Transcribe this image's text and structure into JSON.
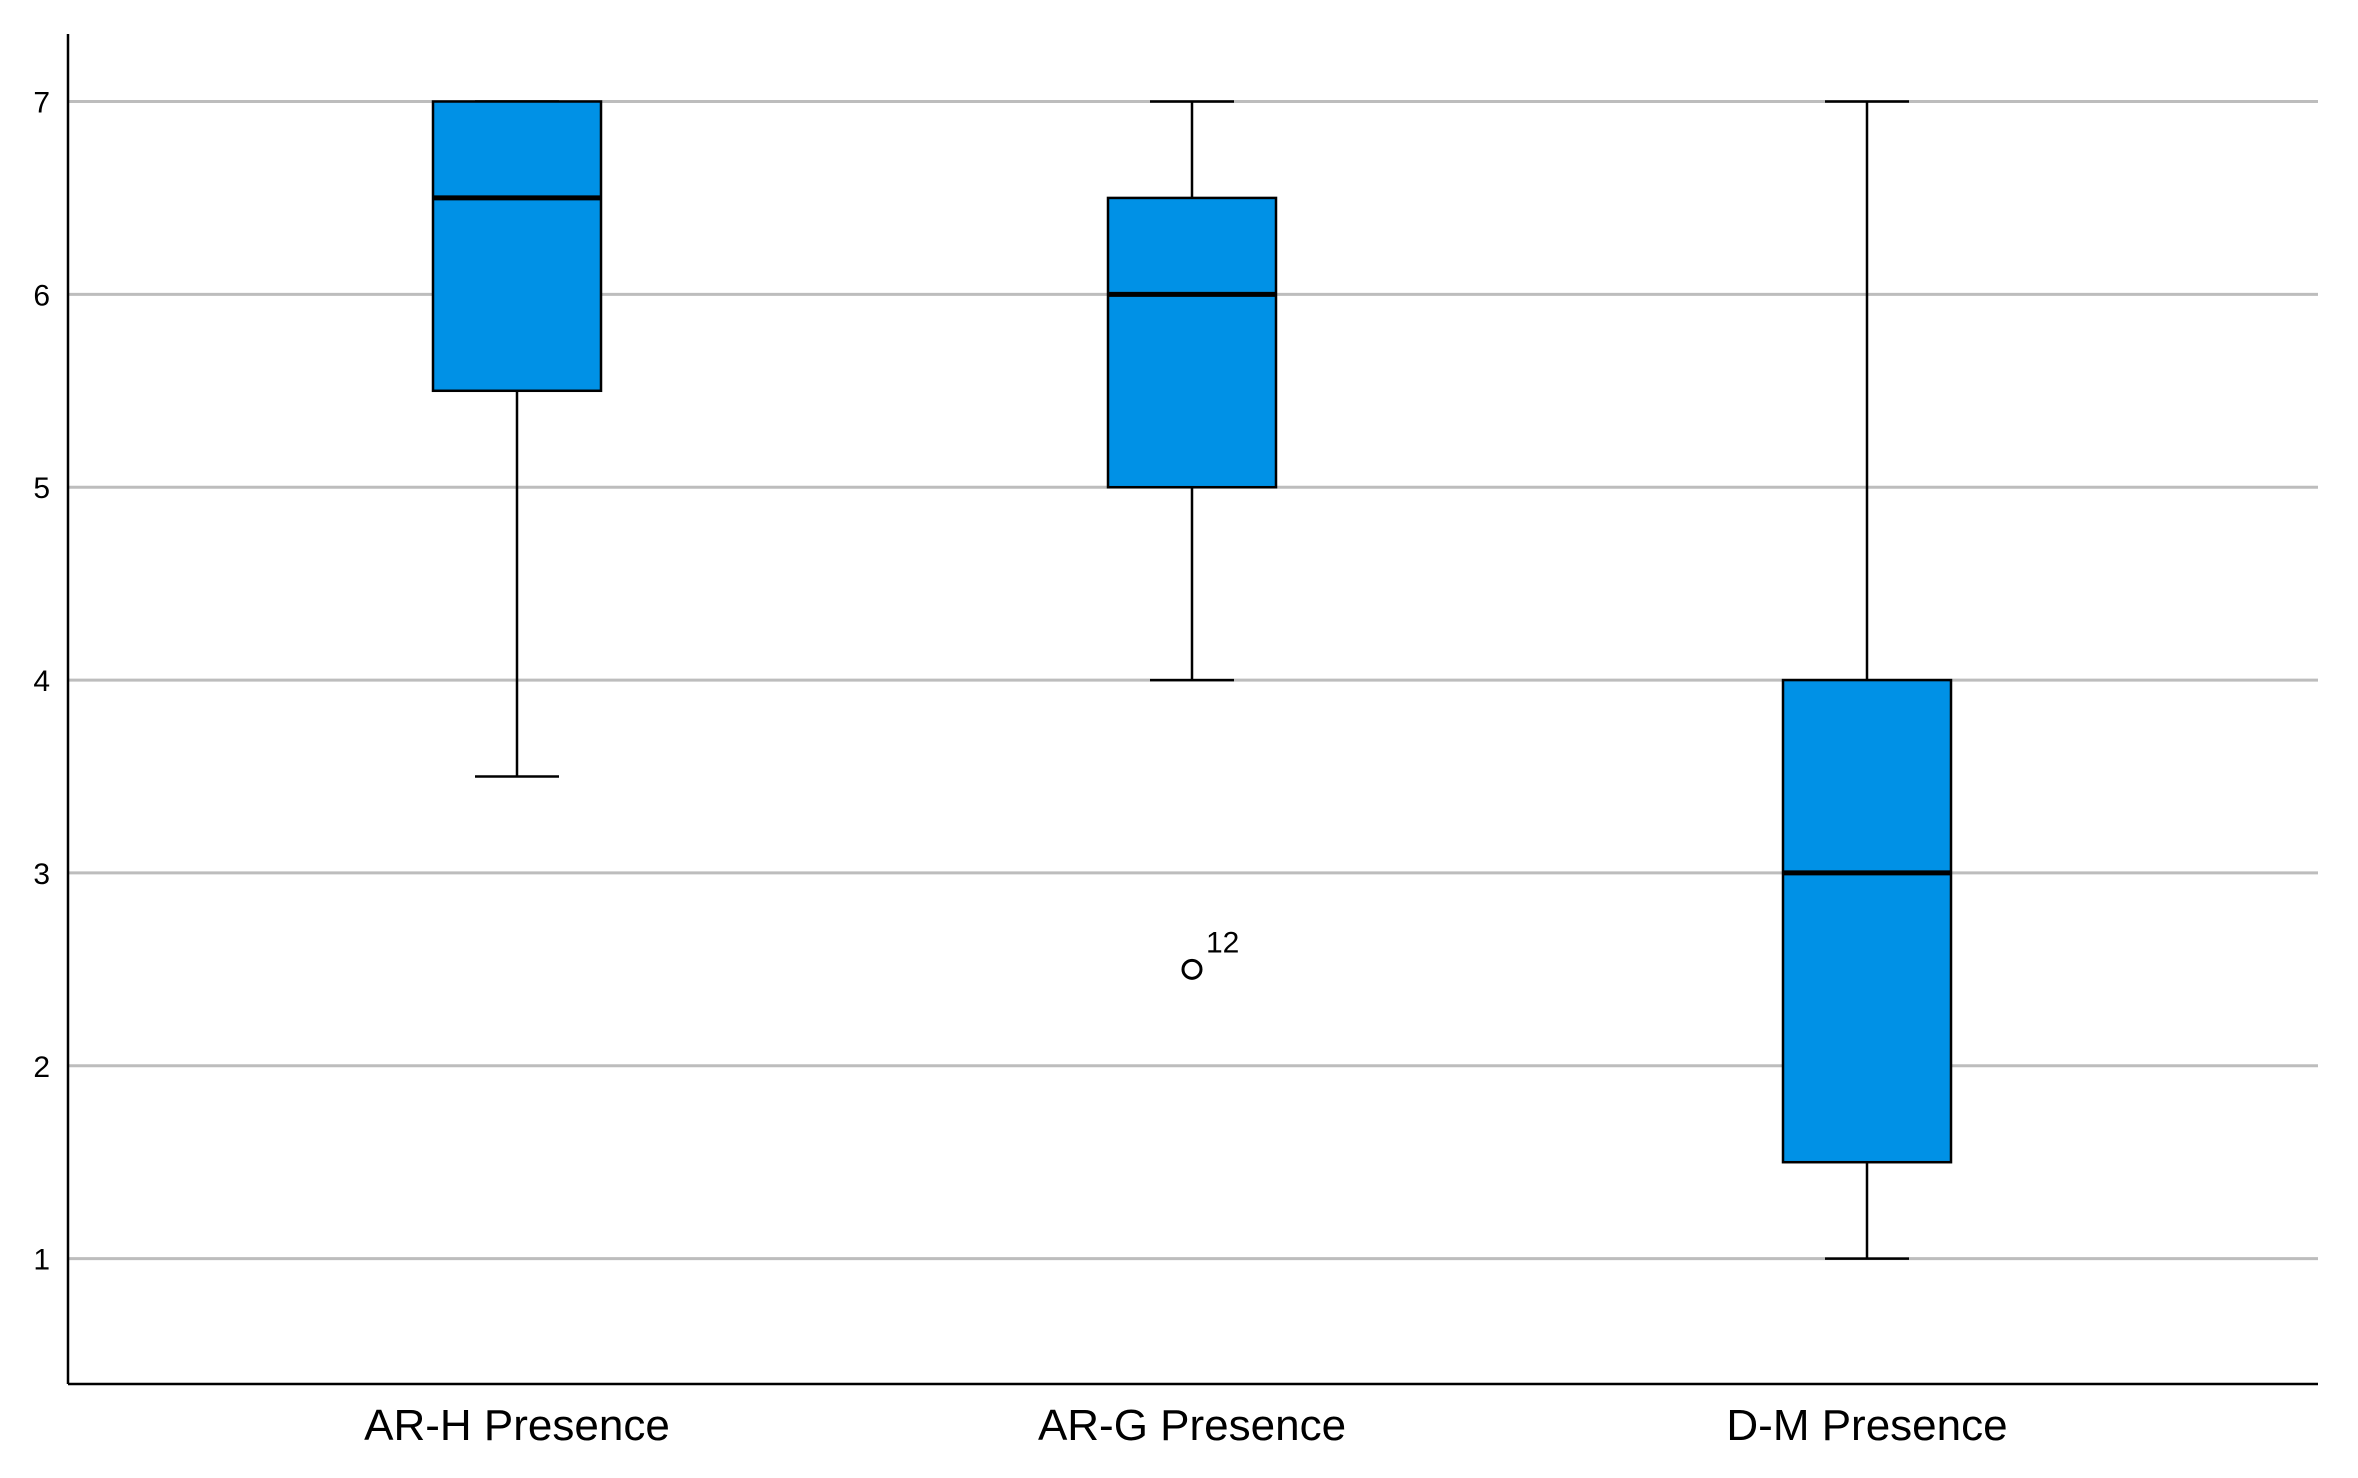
{
  "chart_data": {
    "type": "boxplot",
    "title": "",
    "xlabel": "",
    "ylabel": "",
    "ylim": [
      0.35,
      7.35
    ],
    "yticks": [
      1,
      2,
      3,
      4,
      5,
      6,
      7
    ],
    "grid": true,
    "colors": {
      "box_fill": "#0091e6",
      "gridline": "#bdbdbd",
      "axis": "#000000"
    },
    "categories": [
      "AR-H Presence",
      "AR-G Presence",
      "D-M Presence"
    ],
    "boxes": [
      {
        "name": "AR-H Presence",
        "whisker_low": 3.5,
        "q1": 5.5,
        "median": 6.5,
        "q3": 7,
        "whisker_high": 7,
        "outliers": []
      },
      {
        "name": "AR-G Presence",
        "whisker_low": 4,
        "q1": 5,
        "median": 6,
        "q3": 6.5,
        "whisker_high": 7,
        "outliers": [
          {
            "value": 2.5,
            "label": "12"
          }
        ]
      },
      {
        "name": "D-M Presence",
        "whisker_low": 1,
        "q1": 1.5,
        "median": 3,
        "q3": 4,
        "whisker_high": 7,
        "outliers": []
      }
    ]
  }
}
